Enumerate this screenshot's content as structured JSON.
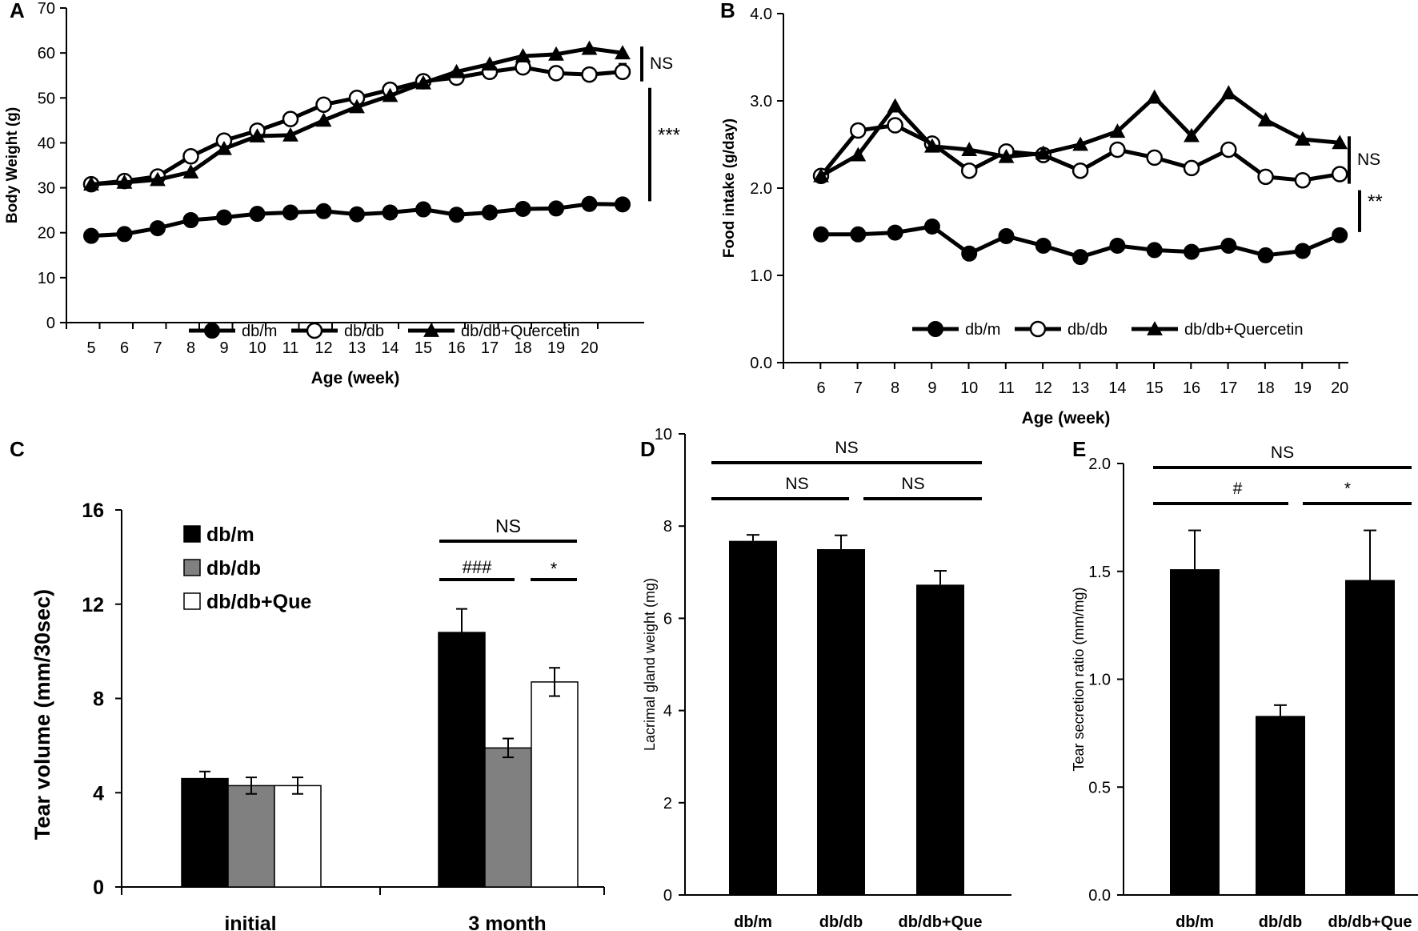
{
  "chart_data": [
    {
      "panel": "A",
      "type": "line",
      "title": "",
      "xlabel": "Age (week)",
      "ylabel": "Body Weight (g)",
      "ylim": [
        0,
        70
      ],
      "yticks": [
        "0",
        "10",
        "20",
        "30",
        "40",
        "50",
        "60",
        "70"
      ],
      "x": [
        "5",
        "6",
        "7",
        "8",
        "9",
        "10",
        "11",
        "12",
        "13",
        "14",
        "15",
        "16",
        "17",
        "18",
        "19",
        "20",
        "21"
      ],
      "xticks": [
        "5",
        "6",
        "7",
        "8",
        "9",
        "10",
        "11",
        "12",
        "13",
        "14",
        "15",
        "16",
        "17",
        "18",
        "19",
        "20"
      ],
      "series": [
        {
          "name": "db/m",
          "marker": "circle-filled",
          "values": [
            19.3,
            19.7,
            21.0,
            22.8,
            23.4,
            24.2,
            24.5,
            24.8,
            24.1,
            24.5,
            25.2,
            24.0,
            24.5,
            25.3,
            25.4,
            26.4,
            26.3
          ]
        },
        {
          "name": "db/db",
          "marker": "circle-open",
          "values": [
            30.8,
            31.5,
            32.5,
            37.0,
            40.5,
            42.7,
            45.3,
            48.5,
            50.0,
            51.8,
            53.7,
            54.5,
            55.8,
            56.8,
            55.5,
            55.2,
            55.8
          ],
          "error": [
            0,
            0,
            0,
            0,
            0,
            0,
            0,
            0,
            0,
            0,
            0,
            0,
            0,
            0,
            0,
            0,
            1.8
          ]
        },
        {
          "name": "db/db+Quercetin",
          "marker": "triangle-filled",
          "values": [
            30.8,
            31.2,
            31.8,
            33.5,
            38.7,
            41.5,
            41.7,
            45.0,
            48.0,
            50.5,
            53.3,
            55.8,
            57.5,
            59.3,
            59.7,
            61.0,
            60.0
          ]
        }
      ],
      "annotations": [
        {
          "text": "NS",
          "between": [
            "db/db",
            "db/db+Quercetin"
          ]
        },
        {
          "text": "***",
          "between": [
            "db/m",
            "db/db"
          ]
        }
      ],
      "legend": [
        "db/m",
        "db/db",
        "db/db+Quercetin"
      ],
      "legend_position": "bottom-center"
    },
    {
      "panel": "B",
      "type": "line",
      "title": "",
      "xlabel": "Age (week)",
      "ylabel": "Food intake (g/day)",
      "ylim": [
        0,
        4
      ],
      "yticks": [
        "0.0",
        "1.0",
        "2.0",
        "3.0",
        "4.0"
      ],
      "x": [
        "6",
        "7",
        "8",
        "9",
        "10",
        "11",
        "12",
        "13",
        "14",
        "15",
        "16",
        "17",
        "18",
        "19",
        "20"
      ],
      "series": [
        {
          "name": "db/m",
          "marker": "circle-filled",
          "values": [
            1.47,
            1.47,
            1.49,
            1.56,
            1.25,
            1.45,
            1.34,
            1.21,
            1.34,
            1.29,
            1.27,
            1.34,
            1.23,
            1.28,
            1.46
          ]
        },
        {
          "name": "db/db",
          "marker": "circle-open",
          "values": [
            2.14,
            2.66,
            2.72,
            2.51,
            2.2,
            2.42,
            2.38,
            2.2,
            2.44,
            2.35,
            2.23,
            2.44,
            2.13,
            2.09,
            2.16
          ]
        },
        {
          "name": "db/db+Quercetin",
          "marker": "triangle-filled",
          "values": [
            2.14,
            2.38,
            2.94,
            2.48,
            2.44,
            2.36,
            2.4,
            2.5,
            2.65,
            3.04,
            2.6,
            3.09,
            2.78,
            2.56,
            2.52
          ]
        }
      ],
      "annotations": [
        {
          "text": "NS",
          "between": [
            "db/db",
            "db/db+Quercetin"
          ]
        },
        {
          "text": "**",
          "between": [
            "db/m",
            "db/db"
          ]
        }
      ],
      "legend": [
        "db/m",
        "db/db",
        "db/db+Quercetin"
      ],
      "legend_position": "bottom-center"
    },
    {
      "panel": "C",
      "type": "bar",
      "title": "",
      "xlabel": "",
      "ylabel": "Tear volume (mm/30sec)",
      "ylim": [
        0,
        16
      ],
      "yticks": [
        "0",
        "4",
        "8",
        "12",
        "16"
      ],
      "categories": [
        "initial",
        "3 month"
      ],
      "series": [
        {
          "name": "db/m",
          "color": "#000000",
          "values": [
            4.6,
            10.8
          ],
          "errors": [
            0.3,
            1.0
          ]
        },
        {
          "name": "db/db",
          "color": "#808080",
          "values": [
            4.3,
            5.9
          ],
          "errors": [
            0.35,
            0.4
          ]
        },
        {
          "name": "db/db+Que",
          "color": "#ffffff",
          "values": [
            4.3,
            8.7
          ],
          "errors": [
            0.35,
            0.6
          ]
        }
      ],
      "annotations": [
        {
          "text": "NS",
          "category": "3 month",
          "between": [
            "db/m",
            "db/db+Que"
          ]
        },
        {
          "text": "###",
          "category": "3 month",
          "between": [
            "db/m",
            "db/db"
          ]
        },
        {
          "text": "*",
          "category": "3 month",
          "between": [
            "db/db",
            "db/db+Que"
          ]
        }
      ],
      "legend": [
        "db/m",
        "db/db",
        "db/db+Que"
      ],
      "legend_position": "top-left"
    },
    {
      "panel": "D",
      "type": "bar",
      "title": "",
      "xlabel": "",
      "ylabel": "Lacrimal gland weight (mg)",
      "ylim": [
        0,
        10
      ],
      "yticks": [
        "0",
        "2",
        "4",
        "6",
        "8",
        "10"
      ],
      "categories": [
        "db/m",
        "db/db",
        "db/db+Que"
      ],
      "values": [
        7.68,
        7.5,
        6.73
      ],
      "errors": [
        0.13,
        0.3,
        0.3
      ],
      "color": "#000000",
      "annotations": [
        {
          "text": "NS",
          "between": [
            "db/m",
            "db/db+Que"
          ]
        },
        {
          "text": "NS",
          "between": [
            "db/m",
            "db/db"
          ]
        },
        {
          "text": "NS",
          "between": [
            "db/db",
            "db/db+Que"
          ]
        }
      ]
    },
    {
      "panel": "E",
      "type": "bar",
      "title": "",
      "xlabel": "",
      "ylabel": "Tear secretion ratio (mm/mg)",
      "ylim": [
        0,
        2
      ],
      "yticks": [
        "0.0",
        "0.5",
        "1.0",
        "1.5",
        "2.0"
      ],
      "categories": [
        "db/m",
        "db/db",
        "db/db+Que"
      ],
      "values": [
        1.51,
        0.83,
        1.46
      ],
      "errors": [
        0.18,
        0.05,
        0.23
      ],
      "color": "#000000",
      "annotations": [
        {
          "text": "NS",
          "between": [
            "db/m",
            "db/db+Que"
          ]
        },
        {
          "text": "#",
          "between": [
            "db/m",
            "db/db"
          ]
        },
        {
          "text": "*",
          "between": [
            "db/db",
            "db/db+Que"
          ]
        }
      ]
    }
  ]
}
